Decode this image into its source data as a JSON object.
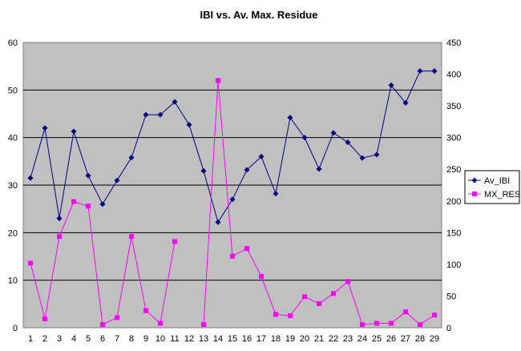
{
  "chart_data": {
    "type": "line",
    "title": "IBI vs. Av. Max. Residue",
    "x": [
      1,
      2,
      3,
      4,
      5,
      6,
      7,
      8,
      9,
      10,
      11,
      12,
      13,
      14,
      15,
      16,
      17,
      18,
      19,
      20,
      21,
      22,
      23,
      24,
      25,
      26,
      27,
      28,
      29
    ],
    "ylim_left": [
      0,
      60
    ],
    "yticks_left": [
      0,
      10,
      20,
      30,
      40,
      50,
      60
    ],
    "ylim_right": [
      0,
      450
    ],
    "yticks_right": [
      0,
      50,
      100,
      150,
      200,
      250,
      300,
      350,
      400,
      450
    ],
    "grid": "horizontal",
    "legend_position": "right",
    "plot_background": "#c0c0c0",
    "series": [
      {
        "name": "Av_IBI",
        "axis": "left",
        "color": "#000080",
        "marker": "diamond",
        "values": [
          31.5,
          42,
          23,
          41.3,
          32,
          26,
          31,
          35.8,
          44.8,
          44.8,
          47.5,
          42.7,
          33,
          22.2,
          27,
          33.2,
          36,
          28.2,
          44.2,
          40,
          33.4,
          41,
          39,
          35.7,
          36.4,
          51,
          47.3,
          54,
          54
        ],
        "segments": [
          [
            0,
            28
          ]
        ]
      },
      {
        "name": "MX_RES",
        "axis": "right",
        "color": "#ff00ff",
        "marker": "square",
        "values": [
          102,
          14,
          144,
          199,
          192,
          5,
          16,
          144,
          27,
          7,
          136,
          null,
          5,
          390,
          113,
          125,
          81,
          21,
          19,
          49,
          38,
          54,
          73,
          5,
          7,
          7,
          25,
          5,
          20
        ],
        "segments": [
          [
            0,
            10
          ],
          [
            12,
            28
          ]
        ]
      }
    ]
  }
}
